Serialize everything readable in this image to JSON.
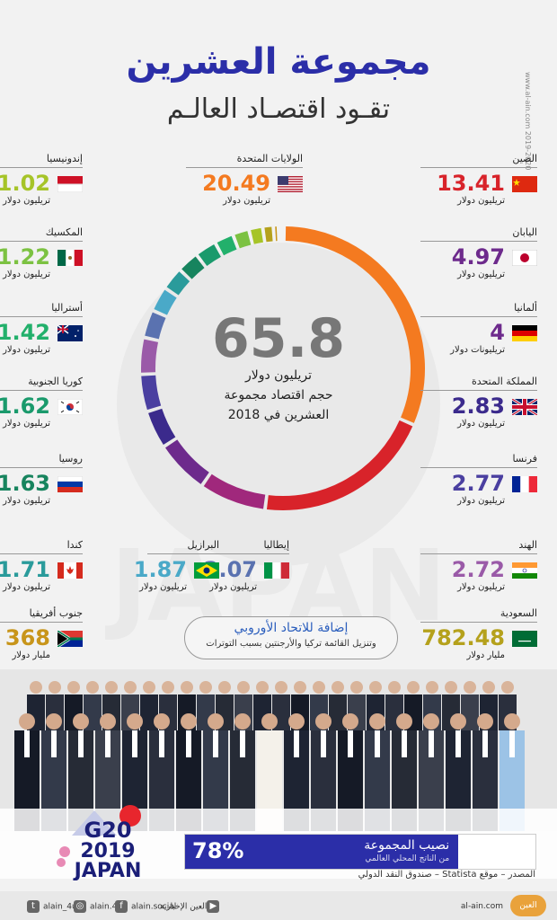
{
  "title": "مجموعة العشرين",
  "subtitle": "تقـود اقتصـاد العالـم",
  "side_credit": "www.al-ain.com 2019-2020",
  "center": {
    "value": "65.8",
    "line1": "تريليون دولار",
    "line2": "حجم اقتصاد مجموعة",
    "line3": "العشرين في 2018"
  },
  "countries": {
    "china": {
      "name": "الصين",
      "value": "13.41",
      "unit": "تريليون دولار",
      "color": "#d8232a"
    },
    "usa": {
      "name": "الولايات المتحدة",
      "value": "20.49",
      "unit": "تريليون دولار",
      "color": "#f47a20"
    },
    "indonesia": {
      "name": "إندونيسيا",
      "value": "1.02",
      "unit": "تريليون دولار",
      "color": "#a6c428"
    },
    "japan": {
      "name": "اليابان",
      "value": "4.97",
      "unit": "تريليون دولار",
      "color": "#6d2a8c"
    },
    "mexico": {
      "name": "المكسيك",
      "value": "1.22",
      "unit": "تريليون دولار",
      "color": "#7cc242"
    },
    "germany": {
      "name": "ألمانيا",
      "value": "4",
      "unit": "تريليونات دولار",
      "color": "#6d2a8c"
    },
    "australia": {
      "name": "أستراليا",
      "value": "1.42",
      "unit": "تريليون دولار",
      "color": "#22b06b"
    },
    "uk": {
      "name": "المملكة المتحدة",
      "value": "2.83",
      "unit": "تريليون دولار",
      "color": "#3b2a8c"
    },
    "south_korea": {
      "name": "كوريا الجنوبية",
      "value": "1.62",
      "unit": "تريليون دولار",
      "color": "#1a9a6c"
    },
    "france": {
      "name": "فرنسا",
      "value": "2.77",
      "unit": "تريليون دولار",
      "color": "#4a3fa0"
    },
    "russia": {
      "name": "روسيا",
      "value": "1.63",
      "unit": "تريليون دولار",
      "color": "#17845e"
    },
    "india": {
      "name": "الهند",
      "value": "2.72",
      "unit": "تريليون دولار",
      "color": "#9a5aa8"
    },
    "italy": {
      "name": "إيطاليا",
      "value": "2.07",
      "unit": "تريليون دولار",
      "color": "#5a72b0"
    },
    "brazil": {
      "name": "البرازيل",
      "value": "1.87",
      "unit": "تريليون دولار",
      "color": "#4aa9c8"
    },
    "canada": {
      "name": "كندا",
      "value": "1.71",
      "unit": "تريليون دولار",
      "color": "#2a9b9b"
    },
    "saudi": {
      "name": "السعودية",
      "value": "782.48",
      "unit": "مليار دولار",
      "color": "#b5a11c"
    },
    "south_africa": {
      "name": "جنوب أفريقيا",
      "value": "368",
      "unit": "مليار دولار",
      "color": "#c8951a"
    }
  },
  "eu_note": {
    "title": "إضافة للاتحاد الأوروبي",
    "text": "وتنزيل القائمة تركيا والأرجنتين بسبب التوترات"
  },
  "share": {
    "percent_label": "78%",
    "percent_value": 78,
    "label": "نصيب المجموعة",
    "sub": "من الناتج المحلي العالمي"
  },
  "source": "المصدر – موقع Statista – صندوق النقد الدولي",
  "logo": {
    "line1": "G20",
    "line2": "2019",
    "line3": "JAPAN"
  },
  "social": {
    "twitter": "alain_4u",
    "instagram": "alain.4u",
    "facebook": "alain.social",
    "youtube": "العين الإخبارية"
  },
  "brand": {
    "name": "العين",
    "url": "al-ain.com"
  },
  "chart_data": {
    "type": "pie",
    "categories": [
      "الولايات المتحدة",
      "الصين",
      "اليابان",
      "ألمانيا",
      "المملكة المتحدة",
      "فرنسا",
      "الهند",
      "إيطاليا",
      "البرازيل",
      "كندا",
      "روسيا",
      "كوريا الجنوبية",
      "أستراليا",
      "المكسيك",
      "إندونيسيا",
      "السعودية",
      "جنوب أفريقيا"
    ],
    "values": [
      20.49,
      13.41,
      4.97,
      4,
      2.83,
      2.77,
      2.72,
      2.07,
      1.87,
      1.71,
      1.63,
      1.62,
      1.42,
      1.22,
      1.02,
      0.78248,
      0.368
    ],
    "colors": [
      "#f47a20",
      "#d8232a",
      "#a0287c",
      "#6d2a8c",
      "#3b2a8c",
      "#4a3fa0",
      "#9a5aa8",
      "#5a72b0",
      "#4aa9c8",
      "#2a9b9b",
      "#17845e",
      "#1a9a6c",
      "#22b06b",
      "#7cc242",
      "#a6c428",
      "#b5a11c",
      "#c8951a"
    ],
    "total_label": "65.8"
  }
}
